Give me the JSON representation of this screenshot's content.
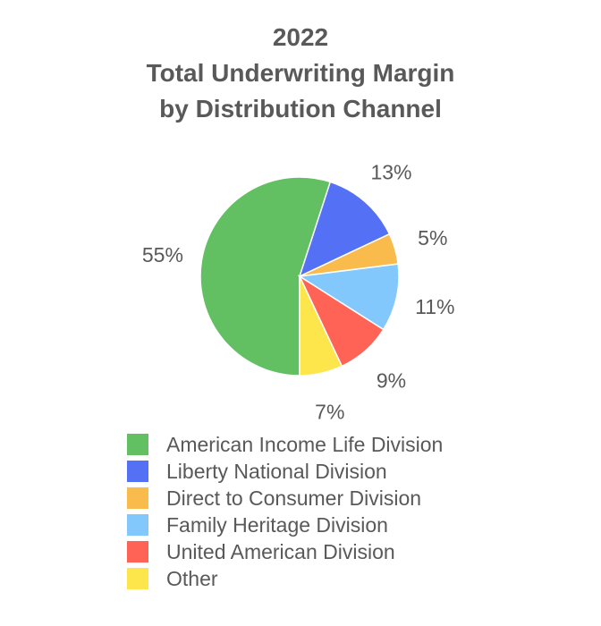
{
  "chart_data": {
    "type": "pie",
    "title_lines": [
      "2022",
      "Total Underwriting Margin",
      "by Distribution Channel"
    ],
    "slices": [
      {
        "label": "American Income Life Division",
        "value": 55,
        "display": "55%",
        "color": "#62c062"
      },
      {
        "label": "Liberty National Division",
        "value": 13,
        "display": "13%",
        "color": "#5470f5"
      },
      {
        "label": "Direct to Consumer Division",
        "value": 5,
        "display": "5%",
        "color": "#f8bb4c"
      },
      {
        "label": "Family Heritage Division",
        "value": 11,
        "display": "11%",
        "color": "#82c8fd"
      },
      {
        "label": "United American Division",
        "value": 9,
        "display": "9%",
        "color": "#fe6356"
      },
      {
        "label": "Other",
        "value": 7,
        "display": "7%",
        "color": "#fde54c"
      }
    ],
    "legend_position": "bottom"
  }
}
